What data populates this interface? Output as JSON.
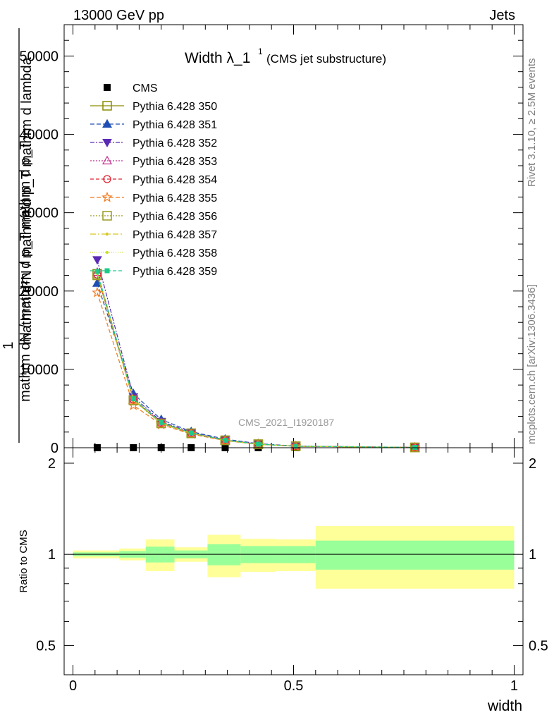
{
  "header": {
    "left": "13000 GeV pp",
    "right": "Jets"
  },
  "title": {
    "main": "Width λ_1",
    "superscript": "1",
    "subtitle": "(CMS jet substructure)"
  },
  "side_text": {
    "rivet": "Rivet 3.1.10, ≥ 2.5M events",
    "mcplots": "mcplots.cern.ch [arXiv:1306.3436]"
  },
  "watermark": "CMS_2021_I1920187",
  "ylabel": {
    "main_numerator": "1",
    "main_denominator": "mathrm dN / mathrm d p_T mathrm d p_T",
    "main_fraction": "mathrm d²N / mathrm d p_T mathrm d lambda",
    "ratio": "Ratio to CMS"
  },
  "xlabel": "width",
  "colors": {
    "cms": "#000000",
    "p350": "#8c8c00",
    "p351": "#1f4fb5",
    "p352": "#5a2ab5",
    "p353": "#c22f8e",
    "p354": "#e0212f",
    "p355": "#f07a1e",
    "p356": "#9a9a20",
    "p357": "#d6c81e",
    "p358": "#cce020",
    "p359": "#1ec98a",
    "band_inner": "#99ff99",
    "band_outer": "#ffff99"
  },
  "chart_data": [
    {
      "type": "line",
      "panel": "main",
      "xlim": [
        -0.02,
        1.02
      ],
      "ylim": [
        0,
        54000
      ],
      "yticks_major": [
        0,
        10000,
        20000,
        30000,
        40000,
        50000
      ],
      "ytick_labels": [
        "0",
        "10000",
        "20000",
        "30000",
        "40000",
        "50000"
      ],
      "x": [
        0.055,
        0.137,
        0.2,
        0.268,
        0.345,
        0.42,
        0.505,
        0.775
      ],
      "series": [
        {
          "name": "CMS",
          "marker": "square-filled",
          "values": [
            5,
            4,
            3,
            2.5,
            2,
            1.2,
            0.5,
            0.1
          ]
        },
        {
          "name": "Pythia 6.428 350",
          "marker": "square-open",
          "dash": "",
          "values": [
            22200,
            6100,
            3150,
            1850,
            950,
            450,
            190,
            40
          ]
        },
        {
          "name": "Pythia 6.428 351",
          "marker": "triangle-up-filled",
          "dash": "6,3",
          "values": [
            21000,
            6900,
            3600,
            2050,
            1100,
            520,
            220,
            45
          ]
        },
        {
          "name": "Pythia 6.428 352",
          "marker": "triangle-down-filled",
          "dash": "6,2,2,2",
          "values": [
            24000,
            6500,
            3350,
            1950,
            1000,
            480,
            200,
            42
          ]
        },
        {
          "name": "Pythia 6.428 353",
          "marker": "triangle-up-open",
          "dash": "2,2",
          "values": [
            22400,
            6200,
            3200,
            1880,
            960,
            455,
            192,
            40
          ]
        },
        {
          "name": "Pythia 6.428 354",
          "marker": "circle-open",
          "dash": "5,3",
          "values": [
            22100,
            6150,
            3180,
            1860,
            955,
            452,
            191,
            40
          ]
        },
        {
          "name": "Pythia 6.428 355",
          "marker": "star-open",
          "dash": "6,3",
          "values": [
            19800,
            5400,
            2950,
            1750,
            900,
            430,
            180,
            38
          ]
        },
        {
          "name": "Pythia 6.428 356",
          "marker": "square-open",
          "dash": "2,2",
          "values": [
            22000,
            6050,
            3100,
            1830,
            940,
            448,
            188,
            39
          ]
        },
        {
          "name": "Pythia 6.428 357",
          "marker": "dot",
          "dash": "8,3,2,3",
          "values": [
            22300,
            6180,
            3190,
            1870,
            958,
            454,
            192,
            40
          ]
        },
        {
          "name": "Pythia 6.428 358",
          "marker": "dot",
          "dash": "1,2",
          "values": [
            22250,
            6120,
            3170,
            1855,
            952,
            451,
            190,
            40
          ]
        },
        {
          "name": "Pythia 6.428 359",
          "marker": "square-filled-small",
          "dash": "5,3",
          "values": [
            22500,
            6250,
            3220,
            1890,
            965,
            458,
            193,
            41
          ]
        }
      ]
    },
    {
      "type": "area",
      "panel": "ratio",
      "xlim": [
        -0.02,
        1.02
      ],
      "ylim": [
        0.4,
        2.25
      ],
      "yticks": [
        0.5,
        1,
        2
      ],
      "ytick_labels": [
        "0.5",
        "1",
        "2"
      ],
      "xticks": [
        0,
        0.5,
        1
      ],
      "xtick_labels": [
        "0",
        "0.5",
        "1"
      ],
      "bins": [
        {
          "x0": 0.0,
          "x1": 0.105,
          "inner": [
            0.985,
            1.015
          ],
          "outer": [
            0.97,
            1.03
          ]
        },
        {
          "x0": 0.105,
          "x1": 0.165,
          "inner": [
            0.975,
            1.025
          ],
          "outer": [
            0.955,
            1.045
          ]
        },
        {
          "x0": 0.165,
          "x1": 0.23,
          "inner": [
            0.94,
            1.06
          ],
          "outer": [
            0.88,
            1.12
          ]
        },
        {
          "x0": 0.23,
          "x1": 0.305,
          "inner": [
            0.97,
            1.03
          ],
          "outer": [
            0.945,
            1.055
          ]
        },
        {
          "x0": 0.305,
          "x1": 0.38,
          "inner": [
            0.92,
            1.08
          ],
          "outer": [
            0.84,
            1.16
          ]
        },
        {
          "x0": 0.38,
          "x1": 0.46,
          "inner": [
            0.935,
            1.065
          ],
          "outer": [
            0.875,
            1.125
          ]
        },
        {
          "x0": 0.46,
          "x1": 0.55,
          "inner": [
            0.935,
            1.065
          ],
          "outer": [
            0.88,
            1.12
          ]
        },
        {
          "x0": 0.55,
          "x1": 1.0,
          "inner": [
            0.89,
            1.11
          ],
          "outer": [
            0.77,
            1.24
          ]
        }
      ]
    }
  ]
}
